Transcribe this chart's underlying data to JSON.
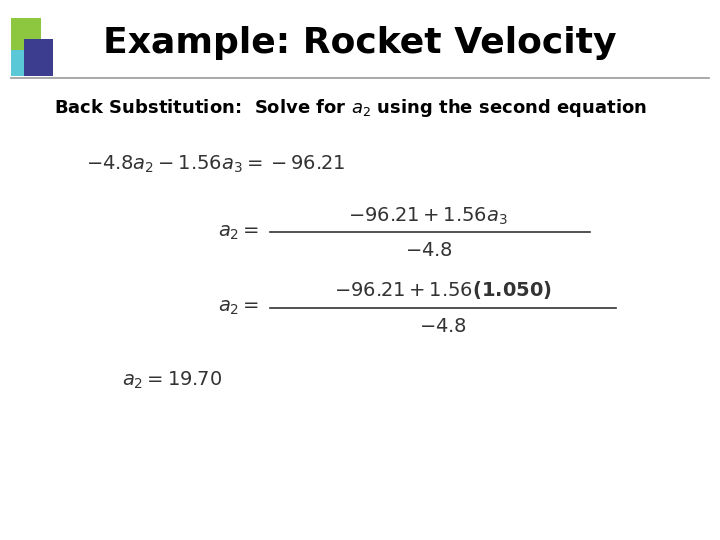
{
  "title": "Example: Rocket Velocity",
  "bg_color": "#ffffff",
  "title_color": "#000000",
  "subtitle_color": "#000000",
  "title_fontsize": 26,
  "subtitle_fontsize": 13,
  "eq_fontsize": 14,
  "green_color": "#8dc63f",
  "blue_color": "#3d3d8f",
  "teal_color": "#5bc8d8",
  "line_color": "#999999",
  "text_color": "#333333"
}
